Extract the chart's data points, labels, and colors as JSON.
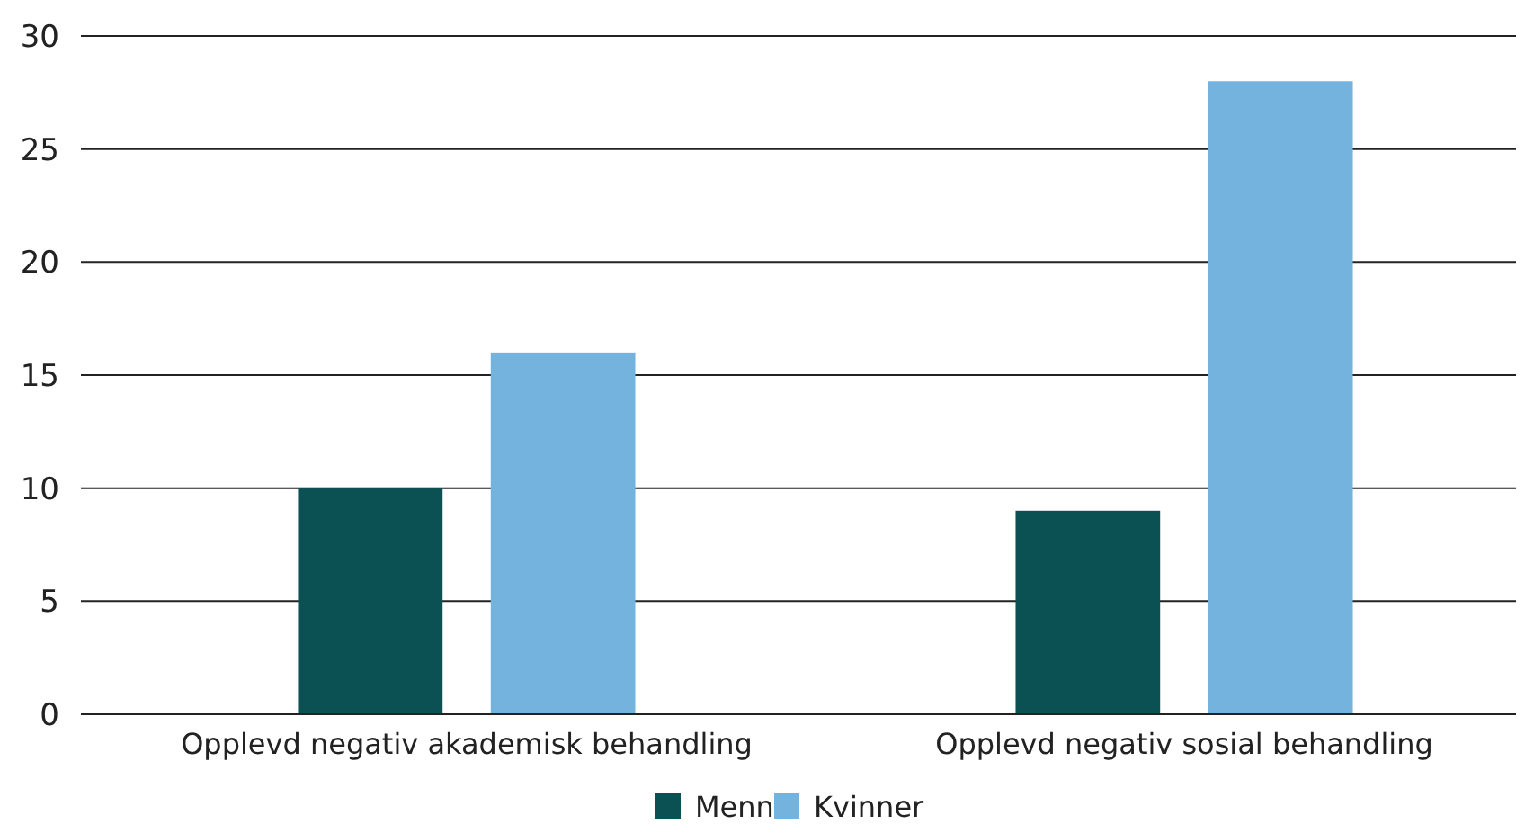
{
  "chart_data": {
    "type": "bar",
    "categories": [
      "Opplevd negativ akademisk behandling",
      "Opplevd negativ sosial behandling"
    ],
    "series": [
      {
        "name": "Menn",
        "color": "#0b5053",
        "values": [
          10,
          9
        ]
      },
      {
        "name": "Kvinner",
        "color": "#74b3de",
        "values": [
          16,
          28
        ]
      }
    ],
    "ylim": [
      0,
      30
    ],
    "yticks": [
      0,
      5,
      10,
      15,
      20,
      25,
      30
    ],
    "grid": "y",
    "legend": "bottom"
  }
}
